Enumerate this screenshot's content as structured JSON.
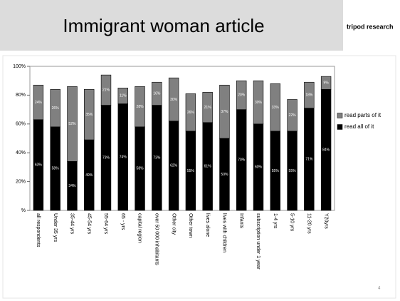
{
  "header": {
    "title": "Immigrant woman article",
    "brand": "tripod research"
  },
  "page_number": "4",
  "chart_data": {
    "type": "stacked-bar",
    "categories": [
      "all respondents",
      "Under 35 yrs",
      "35-44 yrs",
      "45-54 yrs",
      "55-64 yrs",
      "65 - yrs",
      "capital region",
      "over 50 000 inhabitants",
      "Other city",
      "Other town",
      "lives alone",
      "lives with children",
      "Infants",
      "subscription under 1 year",
      "1-4 yrs",
      "5-10 yrs",
      "11-20 yrs",
      "Y20yrs"
    ],
    "series": [
      {
        "name": "read all of it",
        "color": "#000000",
        "values": [
          63,
          58,
          34,
          49,
          73,
          74,
          58,
          73,
          62,
          55,
          61,
          50,
          70,
          60,
          55,
          55,
          71,
          84
        ],
        "value_labels": [
          "63%",
          "58%",
          "34%",
          "49%",
          "73%",
          "74%",
          "58%",
          "73%",
          "62%",
          "55%",
          "61%",
          "50%",
          "70%",
          "60%",
          "55%",
          "55%",
          "71%",
          "84%"
        ]
      },
      {
        "name": "read parts of it",
        "color": "#808080",
        "values": [
          24,
          26,
          52,
          35,
          21,
          11,
          28,
          16,
          30,
          26,
          21,
          37,
          20,
          30,
          33,
          22,
          18,
          9
        ],
        "value_labels": [
          "24%",
          "26%",
          "52%",
          "35%",
          "21%",
          "11%",
          "28%",
          "16%",
          "30%",
          "26%",
          "21%",
          "37%",
          "20%",
          "30%",
          "33%",
          "22%",
          "18%",
          "9%"
        ]
      }
    ],
    "ylim": [
      0,
      100
    ],
    "yticks": [
      {
        "value": 0,
        "label": "%"
      },
      {
        "value": 20,
        "label": "20%"
      },
      {
        "value": 40,
        "label": "40%"
      },
      {
        "value": 60,
        "label": "60%"
      },
      {
        "value": 80,
        "label": "80%"
      },
      {
        "value": 100,
        "label": "100%"
      }
    ],
    "legend": "right"
  }
}
